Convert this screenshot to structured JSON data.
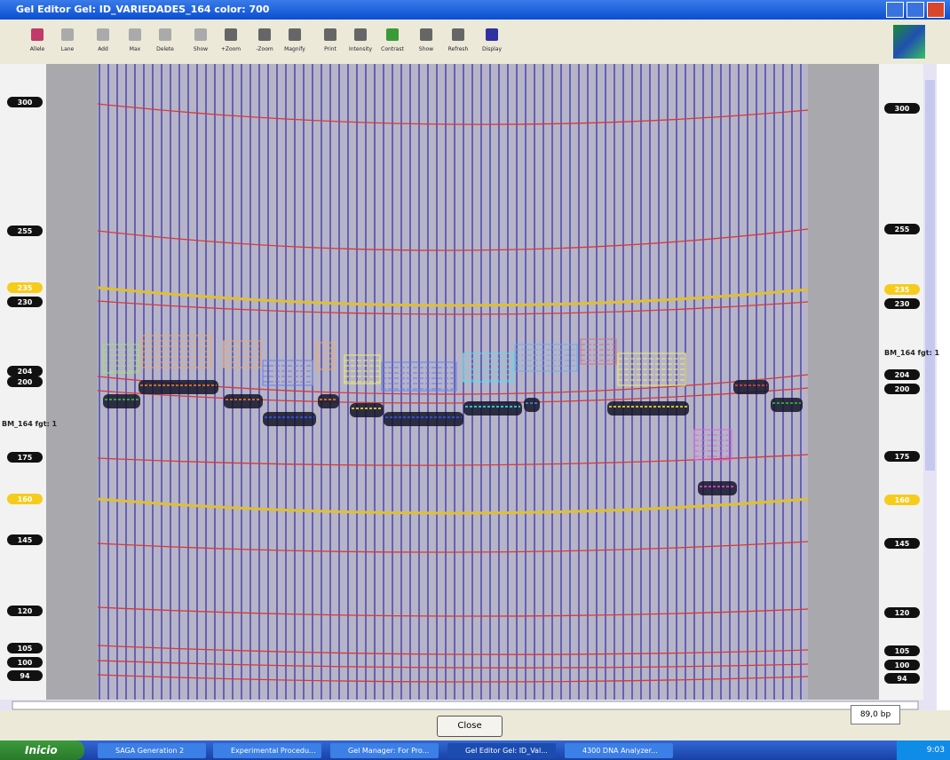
{
  "window": {
    "title": "Gel Editor Gel: ID_VARIEDADES_164 color: 700"
  },
  "toolbar": {
    "buttons": [
      "Allele",
      "Lane",
      "Add",
      "Max",
      "Delete",
      "Show",
      "+Zoom",
      "-Zoom",
      "Magnify",
      "Print",
      "Intensity",
      "Contrast",
      "Show",
      "Refresh",
      "Display"
    ]
  },
  "ruler_left": {
    "labels": [
      "300",
      "255",
      "235",
      "230",
      "204",
      "200",
      "BM_164 fgt: 1",
      "175",
      "160",
      "145",
      "120",
      "105",
      "100",
      "94"
    ]
  },
  "ruler_right": {
    "labels": [
      "300",
      "255",
      "235",
      "230",
      "BM_164 fgt: 1",
      "204",
      "200",
      "175",
      "160",
      "145",
      "120",
      "105",
      "100",
      "94"
    ]
  },
  "status": "89,0 bp",
  "close_button": "Close",
  "taskbar": {
    "start": "Inicio",
    "items": [
      "SAGA Generation 2",
      "Experimental Procedu...",
      "Gel Manager: For Pro...",
      "Gel Editor Gel: ID_Val...",
      "4300 DNA Analyzer..."
    ],
    "clock": "9:03"
  }
}
